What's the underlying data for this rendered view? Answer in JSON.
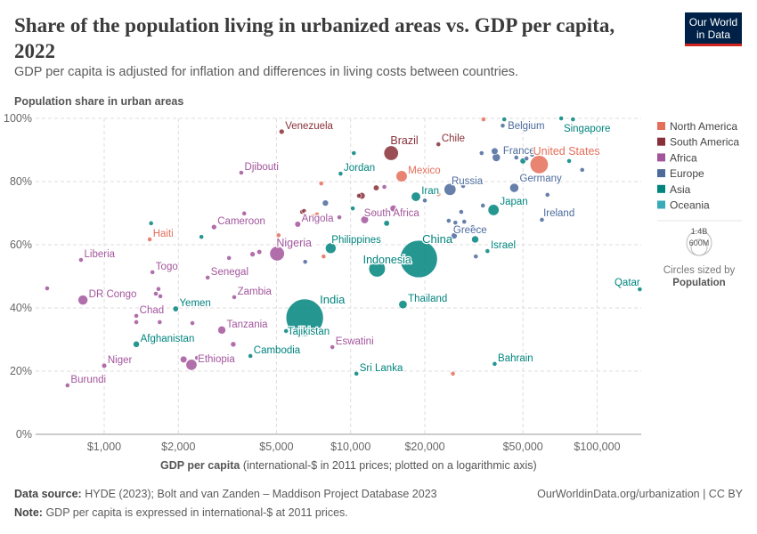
{
  "title": "Share of the population living in urbanized areas vs. GDP per capita, 2022",
  "subtitle": "GDP per capita is adjusted for inflation and differences in living costs between countries.",
  "logo": "Our World in Data",
  "footer": {
    "source_label": "Data source:",
    "source": "HYDE (2023); Bolt and van Zanden – Maddison Project Database 2023",
    "note_label": "Note:",
    "note": "GDP per capita is expressed in international-$ at 2011 prices.",
    "url": "OurWorldinData.org/urbanization | CC BY"
  },
  "chart_data": {
    "type": "scatter",
    "title": "Share of the population living in urbanized areas vs. GDP per capita, 2022",
    "ylabel": "Population share in urban areas",
    "xlabel_bold": "GDP per capita",
    "xlabel_rest": "(international-$ in 2011 prices; plotted on a logarithmic axis)",
    "x_scale": "log",
    "xlim": [
      527,
      151000
    ],
    "ylim": [
      0,
      100
    ],
    "grid": true,
    "x_ticks": [
      {
        "v": 1000,
        "label": "$1,000"
      },
      {
        "v": 2000,
        "label": "$2,000"
      },
      {
        "v": 5000,
        "label": "$5,000"
      },
      {
        "v": 10000,
        "label": "$10,000"
      },
      {
        "v": 20000,
        "label": "$20,000"
      },
      {
        "v": 50000,
        "label": "$50,000"
      },
      {
        "v": 100000,
        "label": "$100,000"
      }
    ],
    "y_ticks": [
      {
        "v": 0,
        "label": "0%"
      },
      {
        "v": 20,
        "label": "20%"
      },
      {
        "v": 40,
        "label": "40%"
      },
      {
        "v": 60,
        "label": "60%"
      },
      {
        "v": 80,
        "label": "80%"
      },
      {
        "v": 100,
        "label": "100%"
      }
    ],
    "legend_position": "right",
    "legend": [
      {
        "name": "North America",
        "color": "#E56E5A"
      },
      {
        "name": "South America",
        "color": "#883039"
      },
      {
        "name": "Africa",
        "color": "#A2559C"
      },
      {
        "name": "Europe",
        "color": "#4C6A9C"
      },
      {
        "name": "Asia",
        "color": "#00847E"
      },
      {
        "name": "Oceania",
        "color": "#38AABA"
      }
    ],
    "size_legend": {
      "large": "1.4B",
      "small": "600M",
      "caption": "Circles sized by",
      "variable": "Population"
    },
    "labeled_points": [
      {
        "name": "Venezuela",
        "gdp": 5250,
        "urban": 95.8,
        "continent": "South America",
        "pop": 28
      },
      {
        "name": "Djibouti",
        "gdp": 3600,
        "urban": 82.8,
        "continent": "Africa",
        "pop": 1
      },
      {
        "name": "Haiti",
        "gdp": 1530,
        "urban": 61.7,
        "continent": "North America",
        "pop": 11
      },
      {
        "name": "Cameroon",
        "gdp": 2790,
        "urban": 65.6,
        "continent": "Africa",
        "pop": 28
      },
      {
        "name": "Liberia",
        "gdp": 805,
        "urban": 55.2,
        "continent": "Africa",
        "pop": 5
      },
      {
        "name": "Togo",
        "gdp": 1570,
        "urban": 51.3,
        "continent": "Africa",
        "pop": 9
      },
      {
        "name": "Senegal",
        "gdp": 2630,
        "urban": 49.6,
        "continent": "Africa",
        "pop": 17
      },
      {
        "name": "Nigeria",
        "gdp": 5030,
        "urban": 57.2,
        "continent": "Africa",
        "pop": 218
      },
      {
        "name": "Angola",
        "gdp": 6100,
        "urban": 66.5,
        "continent": "Africa",
        "pop": 36
      },
      {
        "name": "Philippines",
        "gdp": 8300,
        "urban": 58.9,
        "continent": "Asia",
        "pop": 115
      },
      {
        "name": "DR Congo",
        "gdp": 820,
        "urban": 42.5,
        "continent": "Africa",
        "pop": 99
      },
      {
        "name": "Zambia",
        "gdp": 3370,
        "urban": 43.4,
        "continent": "Africa",
        "pop": 20
      },
      {
        "name": "Yemen",
        "gdp": 1950,
        "urban": 39.7,
        "continent": "Asia",
        "pop": 33
      },
      {
        "name": "Chad",
        "gdp": 1350,
        "urban": 37.5,
        "continent": "Africa",
        "pop": 18
      },
      {
        "name": "Tanzania",
        "gdp": 3000,
        "urban": 33,
        "continent": "Africa",
        "pop": 65
      },
      {
        "name": "Tajikistan",
        "gdp": 5470,
        "urban": 32.7,
        "continent": "Asia",
        "pop": 10
      },
      {
        "name": "Afghanistan",
        "gdp": 1350,
        "urban": 28.5,
        "continent": "Asia",
        "pop": 41
      },
      {
        "name": "Ethiopia",
        "gdp": 2260,
        "urban": 22,
        "continent": "Africa",
        "pop": 123
      },
      {
        "name": "Niger",
        "gdp": 1000,
        "urban": 21.7,
        "continent": "Africa",
        "pop": 26
      },
      {
        "name": "Burundi",
        "gdp": 710,
        "urban": 15.5,
        "continent": "Africa",
        "pop": 13
      },
      {
        "name": "Cambodia",
        "gdp": 3920,
        "urban": 24.8,
        "continent": "Asia",
        "pop": 17
      },
      {
        "name": "India",
        "gdp": 6510,
        "urban": 36.9,
        "continent": "Asia",
        "pop": 1420
      },
      {
        "name": "Eswatini",
        "gdp": 8430,
        "urban": 27.6,
        "continent": "Africa",
        "pop": 1.2
      },
      {
        "name": "Sri Lanka",
        "gdp": 10550,
        "urban": 19.2,
        "continent": "Asia",
        "pop": 22
      },
      {
        "name": "Bahrain",
        "gdp": 38400,
        "urban": 22.3,
        "continent": "Asia",
        "pop": 1.5
      },
      {
        "name": "Qatar",
        "gdp": 149000,
        "urban": 45.9,
        "continent": "Asia",
        "pop": 2.7
      },
      {
        "name": "Thailand",
        "gdp": 16300,
        "urban": 41.1,
        "continent": "Asia",
        "pop": 71
      },
      {
        "name": "Indonesia",
        "gdp": 12800,
        "urban": 52.4,
        "continent": "Asia",
        "pop": 275
      },
      {
        "name": "China",
        "gdp": 18900,
        "urban": 55.5,
        "continent": "Asia",
        "pop": 1412
      },
      {
        "name": "Israel",
        "gdp": 35900,
        "urban": 58,
        "continent": "Asia",
        "pop": 9
      },
      {
        "name": "Ireland",
        "gdp": 59700,
        "urban": 67.9,
        "continent": "Europe",
        "pop": 5
      },
      {
        "name": "Greece",
        "gdp": 26600,
        "urban": 67,
        "continent": "Europe",
        "pop": 10
      },
      {
        "name": "Japan",
        "gdp": 38000,
        "urban": 71,
        "continent": "Asia",
        "pop": 124
      },
      {
        "name": "Germany",
        "gdp": 46100,
        "urban": 78,
        "continent": "Europe",
        "pop": 84
      },
      {
        "name": "Russia",
        "gdp": 25300,
        "urban": 77.5,
        "continent": "Europe",
        "pop": 144
      },
      {
        "name": "Iran",
        "gdp": 18400,
        "urban": 75.2,
        "continent": "Asia",
        "pop": 88
      },
      {
        "name": "South Africa",
        "gdp": 11400,
        "urban": 67.9,
        "continent": "Africa",
        "pop": 60
      },
      {
        "name": "Mexico",
        "gdp": 16100,
        "urban": 81.7,
        "continent": "North America",
        "pop": 127
      },
      {
        "name": "Jordan",
        "gdp": 9100,
        "urban": 82.5,
        "continent": "Asia",
        "pop": 11
      },
      {
        "name": "Brazil",
        "gdp": 14600,
        "urban": 89,
        "continent": "South America",
        "pop": 215
      },
      {
        "name": "Chile",
        "gdp": 22700,
        "urban": 91.8,
        "continent": "South America",
        "pop": 19
      },
      {
        "name": "France",
        "gdp": 39000,
        "urban": 87.6,
        "continent": "Europe",
        "pop": 66
      },
      {
        "name": "Belgium",
        "gdp": 41400,
        "urban": 97.7,
        "continent": "Europe",
        "pop": 12
      },
      {
        "name": "United States",
        "gdp": 58200,
        "urban": 85.4,
        "continent": "North America",
        "pop": 335
      },
      {
        "name": "Singapore",
        "gdp": 79800,
        "urban": 99.7,
        "continent": "Asia",
        "pop": 6
      }
    ],
    "other_points": [
      [
        587,
        46.2,
        "Africa",
        20
      ],
      [
        1550,
        66.8,
        "Asia",
        10
      ],
      [
        2480,
        62.5,
        "Asia",
        8
      ],
      [
        3210,
        55.8,
        "Africa",
        10
      ],
      [
        4260,
        57.7,
        "Africa",
        25
      ],
      [
        4000,
        57,
        "Africa",
        28
      ],
      [
        3700,
        69.9,
        "Africa",
        5
      ],
      [
        1660,
        46,
        "Africa",
        14
      ],
      [
        1620,
        44.5,
        "Africa",
        17
      ],
      [
        1690,
        43.7,
        "Africa",
        6
      ],
      [
        1090,
        44,
        "Africa",
        6
      ],
      [
        1350,
        35.5,
        "Africa",
        8
      ],
      [
        1680,
        35.5,
        "Africa",
        5
      ],
      [
        2280,
        35.2,
        "Africa",
        3
      ],
      [
        2100,
        23.7,
        "Africa",
        47
      ],
      [
        2380,
        24.2,
        "Africa",
        5
      ],
      [
        3340,
        28.5,
        "Africa",
        30
      ],
      [
        6350,
        70.4,
        "South America",
        12
      ],
      [
        7600,
        79.4,
        "North America",
        1
      ],
      [
        7020,
        69,
        "North America",
        3
      ],
      [
        7300,
        69.6,
        "North America",
        2
      ],
      [
        7900,
        73.2,
        "Europe",
        38
      ],
      [
        9000,
        68.7,
        "Africa",
        6
      ],
      [
        10800,
        75.5,
        "South America",
        8
      ],
      [
        12700,
        78,
        "South America",
        34
      ],
      [
        12500,
        70.4,
        "South America",
        18
      ],
      [
        10200,
        71.5,
        "Asia",
        10
      ],
      [
        10300,
        89,
        "Asia",
        5
      ],
      [
        13700,
        78.3,
        "Africa",
        3
      ],
      [
        14900,
        71.5,
        "Africa",
        45
      ],
      [
        14000,
        66.8,
        "Asia",
        34
      ],
      [
        20000,
        74,
        "Europe",
        8
      ],
      [
        22700,
        76,
        "North America",
        5
      ],
      [
        28600,
        78.6,
        "Europe",
        4
      ],
      [
        28100,
        70.4,
        "Europe",
        6
      ],
      [
        34400,
        72.4,
        "Europe",
        10
      ],
      [
        28900,
        67.3,
        "Europe",
        10
      ],
      [
        31300,
        65.6,
        "Europe",
        19
      ],
      [
        25000,
        67.6,
        "Europe",
        3
      ],
      [
        26300,
        62.8,
        "Europe",
        38
      ],
      [
        32200,
        56.3,
        "Europe",
        5
      ],
      [
        32000,
        61.7,
        "Asia",
        52
      ],
      [
        34000,
        89,
        "Europe",
        17
      ],
      [
        38400,
        89.6,
        "Europe",
        47
      ],
      [
        47000,
        87.6,
        "Europe",
        10
      ],
      [
        51700,
        87.3,
        "Europe",
        9
      ],
      [
        54500,
        88.5,
        "Europe",
        5
      ],
      [
        77000,
        86.5,
        "Asia",
        4
      ],
      [
        87000,
        83.7,
        "Europe",
        0.6
      ],
      [
        62900,
        75.8,
        "Europe",
        9
      ],
      [
        42000,
        99.7,
        "Asia",
        1
      ],
      [
        71500,
        100,
        "Asia",
        1
      ],
      [
        34600,
        99.7,
        "North America",
        0.4
      ],
      [
        26000,
        19.2,
        "North America",
        1
      ],
      [
        11100,
        75.5,
        "South America",
        46
      ],
      [
        50000,
        86.5,
        "Asia",
        35
      ],
      [
        5100,
        63,
        "North America",
        7
      ],
      [
        7770,
        56.3,
        "North America",
        3
      ],
      [
        6540,
        54.6,
        "Europe",
        3
      ],
      [
        6470,
        70.7,
        "South America",
        7
      ]
    ]
  }
}
